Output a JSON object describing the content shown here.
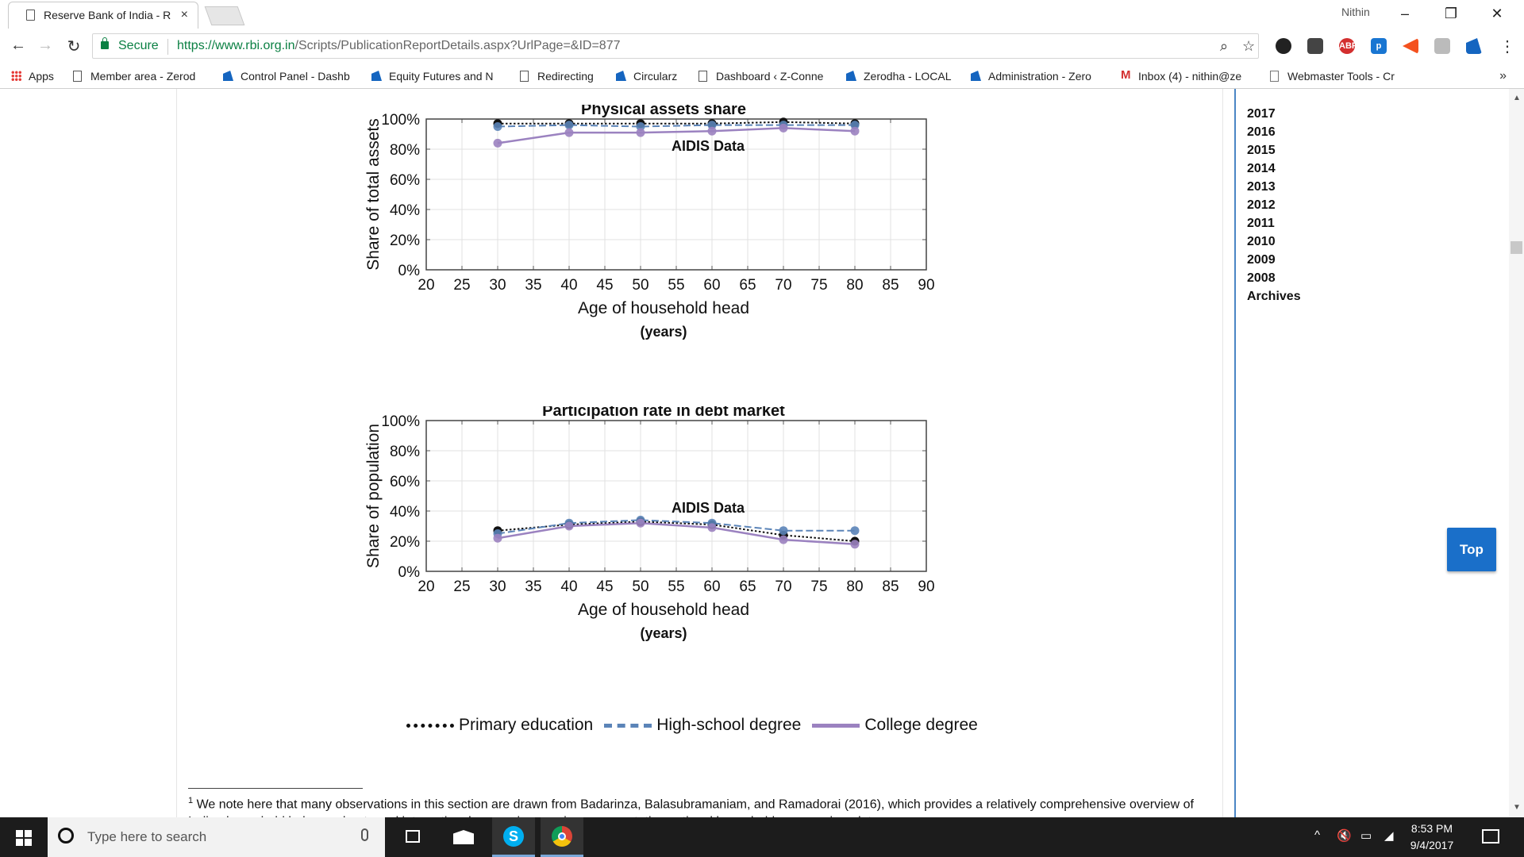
{
  "browser": {
    "tab_title": "Reserve Bank of India - R",
    "tab_close": "×",
    "user_name": "Nithin",
    "window_controls": [
      "–",
      "❐",
      "✕"
    ],
    "secure_label": "Secure",
    "url_host": "https://www.rbi.org.in",
    "url_path": "/Scripts/PublicationReportDetails.aspx?UrlPage=&ID=877",
    "bookmarks": [
      {
        "label": "Apps",
        "icon": "apps-icon"
      },
      {
        "label": "Member area - Zerod",
        "icon": "page-icon"
      },
      {
        "label": "Control Panel - Dashb",
        "icon": "zerodha-icon"
      },
      {
        "label": "Equity Futures and N",
        "icon": "zerodha-icon"
      },
      {
        "label": "Redirecting",
        "icon": "page-icon"
      },
      {
        "label": "Circularz",
        "icon": "zerodha-icon"
      },
      {
        "label": "Dashboard ‹ Z-Conne",
        "icon": "page-icon"
      },
      {
        "label": "Zerodha - LOCAL",
        "icon": "zerodha-icon"
      },
      {
        "label": "Administration - Zero",
        "icon": "zerodha-icon"
      },
      {
        "label": "Inbox (4) - nithin@ze",
        "icon": "gmail-icon"
      },
      {
        "label": "Webmaster Tools - Cr",
        "icon": "webmaster-icon"
      }
    ],
    "bookmarks_more": "»",
    "extensions": [
      {
        "name": "abp",
        "text": "ABP",
        "color": "#d32f2f"
      },
      {
        "name": "p",
        "text": "p",
        "color": "#1976d2"
      }
    ]
  },
  "sidebar": {
    "years": [
      "2017",
      "2016",
      "2015",
      "2014",
      "2013",
      "2012",
      "2011",
      "2010",
      "2009",
      "2008",
      "Archives"
    ]
  },
  "top_button": "Top",
  "chart_data": [
    {
      "type": "line",
      "title": "Physical assets share",
      "annotation": "AIDIS Data",
      "ylabel": "Share of total assets",
      "xlabel": "Age of household head",
      "xlabel_unit": "(years)",
      "xlim": [
        20,
        90
      ],
      "ylim": [
        0,
        100
      ],
      "xticks": [
        "20",
        "25",
        "30",
        "35",
        "40",
        "45",
        "50",
        "55",
        "60",
        "65",
        "70",
        "75",
        "80",
        "85",
        "90"
      ],
      "yticks": [
        "0%",
        "20%",
        "40%",
        "60%",
        "80%",
        "100%"
      ],
      "x": [
        30,
        40,
        50,
        60,
        70,
        80
      ],
      "series": [
        {
          "name": "Primary education",
          "values": [
            97,
            97,
            97,
            97,
            98,
            97
          ],
          "color": "#111111"
        },
        {
          "name": "High-school degree",
          "values": [
            95,
            96,
            95,
            96,
            96,
            96
          ],
          "color": "#5b84b8"
        },
        {
          "name": "College degree",
          "values": [
            84,
            91,
            91,
            92,
            94,
            92
          ],
          "color": "#9b82c0"
        }
      ]
    },
    {
      "type": "line",
      "title": "Participation rate in debt market",
      "annotation": "AIDIS Data",
      "ylabel": "Share of population",
      "xlabel": "Age of household head",
      "xlabel_unit": "(years)",
      "xlim": [
        20,
        90
      ],
      "ylim": [
        0,
        100
      ],
      "xticks": [
        "20",
        "25",
        "30",
        "35",
        "40",
        "45",
        "50",
        "55",
        "60",
        "65",
        "70",
        "75",
        "80",
        "85",
        "90"
      ],
      "yticks": [
        "0%",
        "20%",
        "40%",
        "60%",
        "80%",
        "100%"
      ],
      "x": [
        30,
        40,
        50,
        60,
        70,
        80
      ],
      "series": [
        {
          "name": "Primary education",
          "values": [
            27,
            31,
            33,
            31,
            24,
            20
          ],
          "color": "#111111"
        },
        {
          "name": "High-school degree",
          "values": [
            25,
            32,
            34,
            32,
            27,
            27
          ],
          "color": "#5b84b8"
        },
        {
          "name": "College degree",
          "values": [
            22,
            30,
            32,
            29,
            21,
            18
          ],
          "color": "#9b82c0"
        }
      ]
    }
  ],
  "legend": [
    {
      "name": "Primary education",
      "color": "#111111",
      "style": "dotted"
    },
    {
      "name": "High-school degree",
      "color": "#5b84b8",
      "style": "dashed"
    },
    {
      "name": "College degree",
      "color": "#9b82c0",
      "style": "solid"
    }
  ],
  "footnote": {
    "marker": "1",
    "text": "We note here that many observations in this section are drawn from Badarinza, Balasubramaniam, and Ramadorai (2016), which provides a relatively comprehensive overview of Indian household balance sheets and international comparisons using representative national household survey micro data."
  },
  "taskbar": {
    "search_placeholder": "Type here to search",
    "time": "8:53 PM",
    "date": "9/4/2017"
  }
}
